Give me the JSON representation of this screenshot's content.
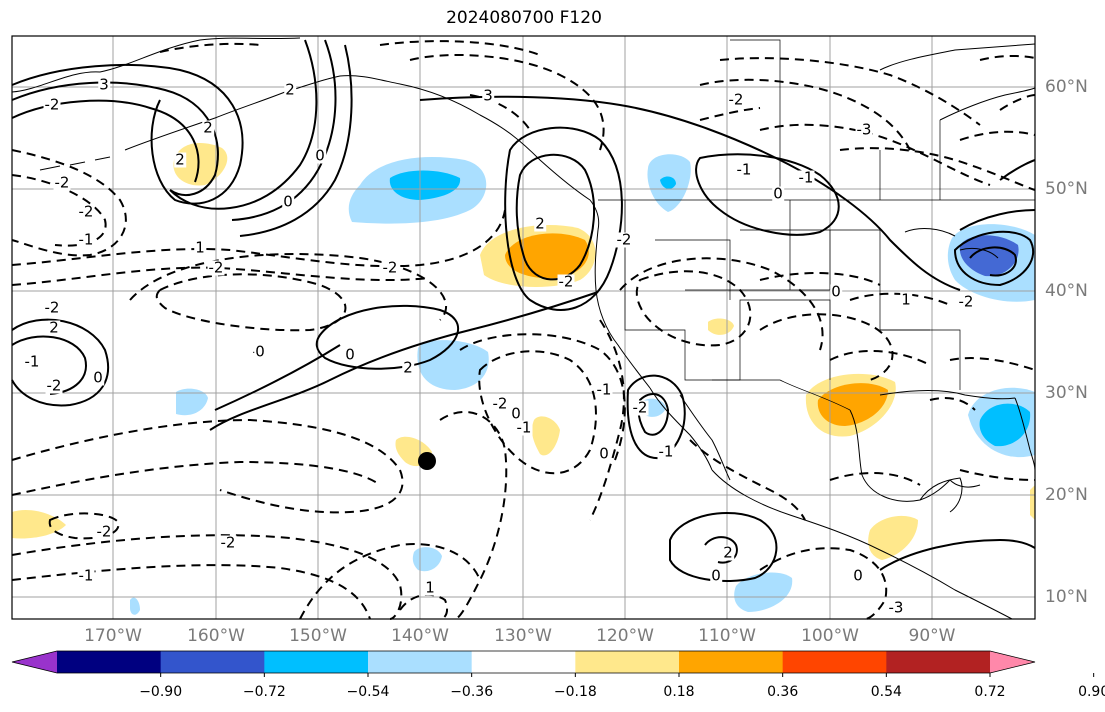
{
  "title": "2024080700 F120",
  "lon_labels": [
    "170°W",
    "160°W",
    "150°W",
    "140°W",
    "130°W",
    "120°W",
    "110°W",
    "100°W",
    "90°W"
  ],
  "lat_labels": [
    "60°N",
    "50°N",
    "40°N",
    "30°N",
    "20°N",
    "10°N"
  ],
  "colorbar": {
    "ticks": [
      "−0.90",
      "−0.72",
      "−0.54",
      "−0.36",
      "−0.18",
      "0.18",
      "0.36",
      "0.54",
      "0.72",
      "0.90"
    ],
    "colors": [
      "#9933cc",
      "#000080",
      "#3355cc",
      "#00bfff",
      "#aadfff",
      "#ffffff",
      "#ffe88c",
      "#ffa500",
      "#ff4500",
      "#b22222",
      "#ff88aa"
    ]
  },
  "contour_labels": [
    "3",
    "-2",
    "2",
    "0",
    "-2",
    "-1",
    "-2",
    "3",
    "2",
    "-2",
    "-3",
    "2",
    "-2",
    "1",
    "0",
    "-2",
    "2",
    "-2",
    "-1",
    "0",
    "-2",
    "0",
    "2",
    "-2",
    "-2",
    "-1",
    "-1",
    "0",
    "0",
    "1",
    "-2",
    "-1",
    "-2",
    "-1",
    "0",
    "0",
    "2",
    "-2",
    "-1",
    "-2",
    "1",
    "0",
    "-3",
    "-2",
    "-1",
    "-2",
    "2",
    "0",
    "0"
  ],
  "marker": "station-dot"
}
